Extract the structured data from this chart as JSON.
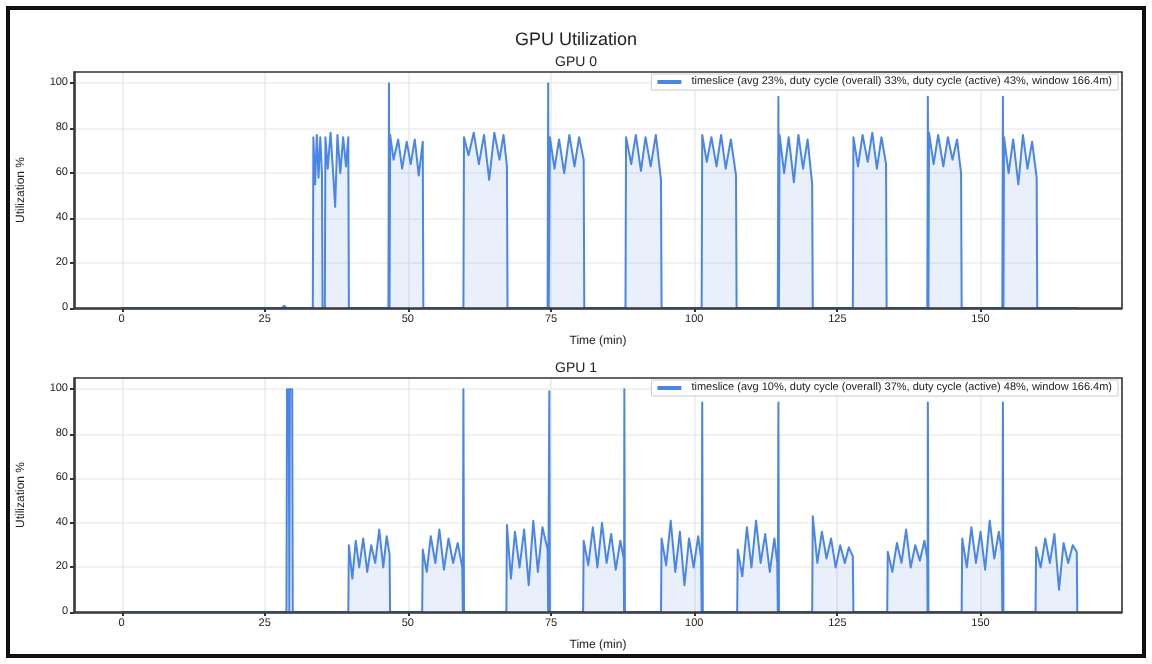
{
  "chart_data": [
    {
      "type": "area",
      "title": "GPU Utilization",
      "subtitle": "GPU 0",
      "xlabel": "Time (min)",
      "ylabel": "Utilization %",
      "xlim": [
        -8.3,
        174.7
      ],
      "xticks": [
        0,
        25,
        50,
        75,
        100,
        125,
        150
      ],
      "ylim": [
        0,
        105
      ],
      "yticks": [
        0,
        20,
        40,
        60,
        80,
        100
      ],
      "grid": true,
      "legend": "top right",
      "marker": "none",
      "x": [
        0,
        28.0,
        28.4,
        28.8,
        33.4,
        33.5,
        33.8,
        34.1,
        34.4,
        34.7,
        35.0,
        35.1,
        35.5,
        35.6,
        36.0,
        36.5,
        37.0,
        37.3,
        37.7,
        38.2,
        38.7,
        39.2,
        39.6,
        39.7,
        46.6,
        46.7,
        46.8,
        46.9,
        47.5,
        48.3,
        49.0,
        49.8,
        50.5,
        51.2,
        51.9,
        52.6,
        52.7,
        59.7,
        59.8,
        60.6,
        61.5,
        62.4,
        63.3,
        64.2,
        65.1,
        66.0,
        66.7,
        67.3,
        67.4,
        74.4,
        74.5,
        74.6,
        74.8,
        75.6,
        76.4,
        77.3,
        78.2,
        79.1,
        79.9,
        80.7,
        80.8,
        88.0,
        88.1,
        89.0,
        89.8,
        90.7,
        91.5,
        92.4,
        93.3,
        94.2,
        94.3,
        101.3,
        101.4,
        102.2,
        103.0,
        103.9,
        104.7,
        105.5,
        106.4,
        107.3,
        107.4,
        114.6,
        114.7,
        114.8,
        114.9,
        115.7,
        116.5,
        117.4,
        118.2,
        119.0,
        119.8,
        120.6,
        120.7,
        127.7,
        127.8,
        128.6,
        129.4,
        130.3,
        131.1,
        131.9,
        132.7,
        133.5,
        133.6,
        140.7,
        140.8,
        140.9,
        141.0,
        141.8,
        142.6,
        143.5,
        144.3,
        145.1,
        145.9,
        146.6,
        146.7,
        153.8,
        153.9,
        154.0,
        154.1,
        154.9,
        155.7,
        156.6,
        157.4,
        158.2,
        159.0,
        159.8,
        159.9,
        167.0
      ],
      "series": [
        {
          "name": "timeslice (avg 23%, duty cycle (overall) 33%, duty cycle (active) 43%, window 166.4m)",
          "color": "#4a86e8",
          "values": [
            0,
            0,
            1,
            0,
            0,
            76,
            55,
            77,
            58,
            76,
            60,
            0,
            0,
            76,
            62,
            78,
            58,
            45,
            77,
            60,
            76,
            63,
            76,
            0,
            0,
            100,
            0,
            77,
            66,
            75,
            62,
            74,
            64,
            75,
            59,
            74,
            0,
            0,
            76,
            68,
            78,
            64,
            77,
            57,
            78,
            66,
            77,
            63,
            0,
            0,
            100,
            0,
            76,
            62,
            75,
            60,
            77,
            63,
            76,
            66,
            0,
            0,
            76,
            64,
            77,
            61,
            76,
            63,
            77,
            57,
            0,
            0,
            77,
            65,
            76,
            63,
            77,
            62,
            75,
            59,
            0,
            0,
            94,
            0,
            77,
            60,
            76,
            56,
            77,
            62,
            75,
            55,
            0,
            0,
            76,
            63,
            77,
            65,
            78,
            62,
            76,
            64,
            0,
            0,
            94,
            0,
            78,
            64,
            77,
            63,
            76,
            66,
            75,
            60,
            0,
            0,
            94,
            0,
            76,
            60,
            75,
            55,
            77,
            62,
            74,
            58,
            0,
            0
          ]
        }
      ]
    },
    {
      "type": "area",
      "title": "GPU 1",
      "xlabel": "Time (min)",
      "ylabel": "Utilization %",
      "xlim": [
        -8.3,
        174.7
      ],
      "xticks": [
        0,
        25,
        50,
        75,
        100,
        125,
        150
      ],
      "ylim": [
        0,
        105
      ],
      "yticks": [
        0,
        20,
        40,
        60,
        80,
        100
      ],
      "grid": true,
      "legend": "top right",
      "marker": "none",
      "x": [
        0,
        28.8,
        28.9,
        29.2,
        29.3,
        29.4,
        29.8,
        29.9,
        39.6,
        39.7,
        40.3,
        40.9,
        41.5,
        42.2,
        42.9,
        43.6,
        44.3,
        45.0,
        45.7,
        46.3,
        46.8,
        46.9,
        52.5,
        52.6,
        53.3,
        54.0,
        54.8,
        55.5,
        56.3,
        57.1,
        57.9,
        58.7,
        59.5,
        59.6,
        59.7,
        59.8,
        67.2,
        67.3,
        68.0,
        68.7,
        69.5,
        70.3,
        71.1,
        71.9,
        72.7,
        73.5,
        74.4,
        74.5,
        74.7,
        74.8,
        80.6,
        80.7,
        81.5,
        82.3,
        83.1,
        83.9,
        84.7,
        85.5,
        86.3,
        87.1,
        87.7,
        87.75,
        87.8,
        87.9,
        94.2,
        94.3,
        95.1,
        95.9,
        96.7,
        97.5,
        98.3,
        99.1,
        99.9,
        100.7,
        101.2,
        101.3,
        101.4,
        101.5,
        107.5,
        107.6,
        108.4,
        109.2,
        110.0,
        110.8,
        111.6,
        112.4,
        113.2,
        114.0,
        114.5,
        114.6,
        114.7,
        114.8,
        120.6,
        120.7,
        121.5,
        122.3,
        123.1,
        123.9,
        124.7,
        125.5,
        126.3,
        127.0,
        127.7,
        127.8,
        133.7,
        133.8,
        134.6,
        135.4,
        136.2,
        137.0,
        137.8,
        138.6,
        139.4,
        140.2,
        140.7,
        140.75,
        140.8,
        140.9,
        146.7,
        146.8,
        147.6,
        148.4,
        149.2,
        150.0,
        150.8,
        151.6,
        152.4,
        153.2,
        153.7,
        153.8,
        153.9,
        154.0,
        159.6,
        159.7,
        160.5,
        161.3,
        162.1,
        162.9,
        163.7,
        164.5,
        165.3,
        166.1,
        166.8,
        166.9,
        167.0
      ],
      "series": [
        {
          "name": "timeslice (avg 10%, duty cycle (overall) 37%, duty cycle (active) 48%, window 166.4m)",
          "color": "#4a86e8",
          "values": [
            0,
            0,
            100,
            100,
            0,
            100,
            100,
            0,
            0,
            30,
            15,
            32,
            20,
            33,
            18,
            30,
            22,
            37,
            20,
            34,
            26,
            0,
            0,
            28,
            18,
            34,
            22,
            37,
            19,
            33,
            22,
            31,
            20,
            0,
            100,
            0,
            0,
            39,
            15,
            36,
            20,
            37,
            12,
            41,
            18,
            38,
            28,
            0,
            99,
            0,
            0,
            32,
            21,
            38,
            20,
            40,
            22,
            35,
            19,
            32,
            24,
            0,
            100,
            0,
            0,
            33,
            21,
            41,
            18,
            36,
            12,
            33,
            20,
            34,
            24,
            0,
            94,
            0,
            0,
            28,
            16,
            38,
            20,
            41,
            22,
            35,
            18,
            33,
            22,
            0,
            94,
            0,
            0,
            43,
            22,
            36,
            24,
            33,
            20,
            30,
            22,
            29,
            25,
            0,
            0,
            27,
            18,
            31,
            22,
            37,
            20,
            30,
            23,
            32,
            24,
            0,
            94,
            0,
            0,
            33,
            20,
            38,
            22,
            36,
            19,
            41,
            24,
            36,
            27,
            0,
            94,
            0,
            0,
            29,
            20,
            33,
            22,
            35,
            10,
            31,
            22,
            30,
            27,
            0,
            0
          ]
        }
      ]
    }
  ]
}
